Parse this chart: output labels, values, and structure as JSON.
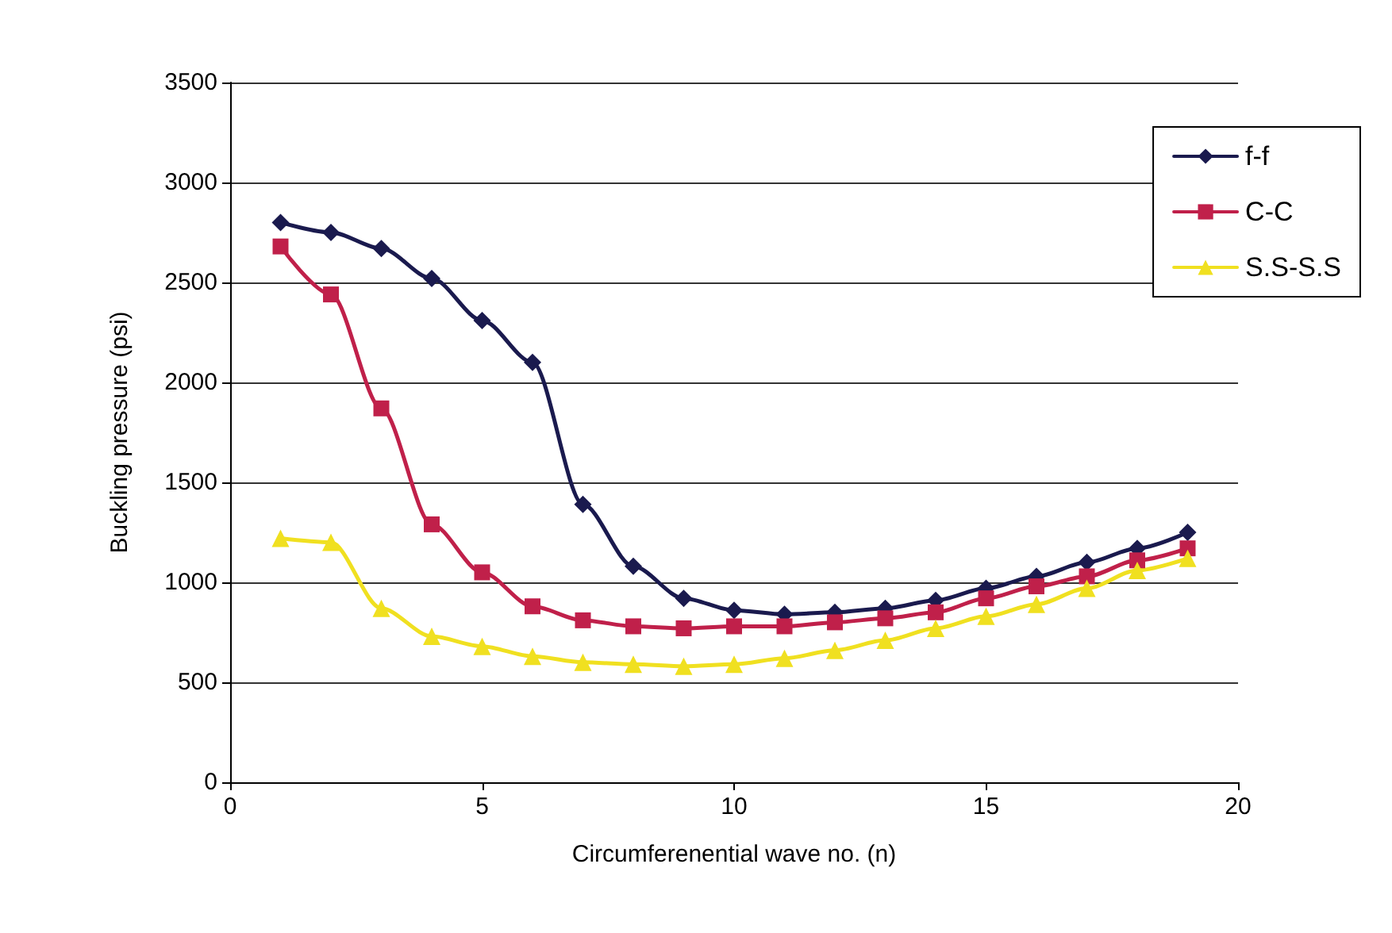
{
  "chart_data": {
    "type": "line",
    "xlabel": "Circumferenential wave no. (n)",
    "ylabel": "Buckling pressure (psi)",
    "x": [
      1,
      2,
      3,
      4,
      5,
      6,
      7,
      8,
      9,
      10,
      11,
      12,
      13,
      14,
      15,
      16,
      17,
      18,
      19
    ],
    "series": [
      {
        "name": "f-f",
        "color": "#1a1a4e",
        "marker": "diamond",
        "values": [
          2800,
          2750,
          2670,
          2520,
          2310,
          2100,
          1390,
          1080,
          920,
          860,
          840,
          850,
          870,
          910,
          970,
          1030,
          1100,
          1170,
          1250
        ]
      },
      {
        "name": "C-C",
        "color": "#c0204a",
        "marker": "square",
        "values": [
          2680,
          2440,
          1870,
          1290,
          1050,
          880,
          810,
          780,
          770,
          780,
          780,
          800,
          820,
          850,
          920,
          980,
          1030,
          1110,
          1170
        ]
      },
      {
        "name": "S.S-S.S",
        "color": "#f0e020",
        "marker": "triangle",
        "values": [
          1220,
          1200,
          870,
          730,
          680,
          630,
          600,
          590,
          580,
          590,
          620,
          660,
          710,
          770,
          830,
          890,
          970,
          1060,
          1120
        ]
      }
    ],
    "xlim": [
      0,
      20
    ],
    "xticks": [
      0,
      5,
      10,
      15,
      20
    ],
    "ylim": [
      0,
      3500
    ],
    "yticks": [
      0,
      500,
      1000,
      1500,
      2000,
      2500,
      3000,
      3500
    ],
    "grid": "y",
    "legend": "top right"
  }
}
